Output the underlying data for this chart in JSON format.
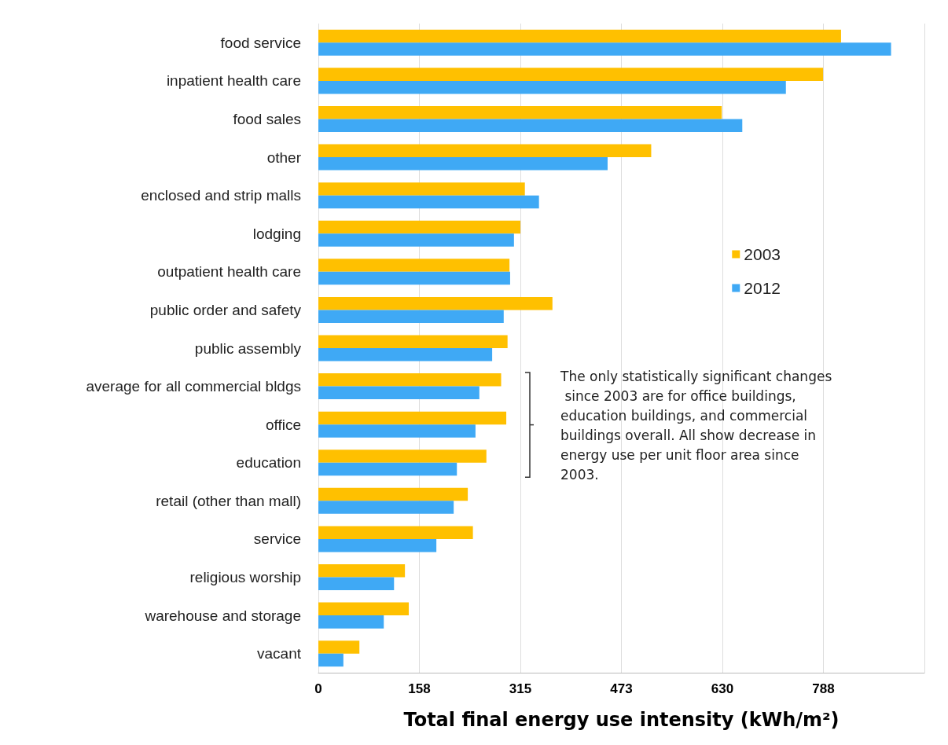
{
  "chart_data": {
    "type": "bar",
    "orientation": "horizontal",
    "xlabel": "Total final energy use intensity (kWh/m²)",
    "categories": [
      "food service",
      "inpatient health care",
      "food sales",
      "other",
      "enclosed and strip malls",
      "lodging",
      "outpatient health care",
      "public order and safety",
      "public assembly",
      "average for all commercial bldgs",
      "office",
      "education",
      "retail (other than mall)",
      "service",
      "religious worship",
      "warehouse and storage",
      "vacant"
    ],
    "series": [
      {
        "name": "2003",
        "color": "#ffc000",
        "values": [
          815,
          787,
          629,
          519,
          322,
          315,
          298,
          365,
          295,
          285,
          293,
          262,
          233,
          241,
          135,
          141,
          64
        ]
      },
      {
        "name": "2012",
        "color": "#3fa9f5",
        "values": [
          893,
          729,
          661,
          451,
          344,
          305,
          299,
          289,
          271,
          251,
          245,
          216,
          211,
          184,
          118,
          102,
          39
        ]
      }
    ],
    "xlim": [
      0,
      945
    ],
    "xticks": [
      0,
      {
        "value": 157.5,
        "label": "158"
      },
      315,
      {
        "value": 472.5,
        "label": "473"
      },
      630,
      {
        "value": 787.5,
        "label": "788"
      },
      {
        "value": 945,
        "label": null
      }
    ],
    "grid": "x",
    "legend": "right",
    "annotations": [
      "The only statistically significant changes since 2003 are for office buildings, education buildings, and commercial buildings overall. All show decrease in energy use per unit floor area since 2003."
    ]
  }
}
